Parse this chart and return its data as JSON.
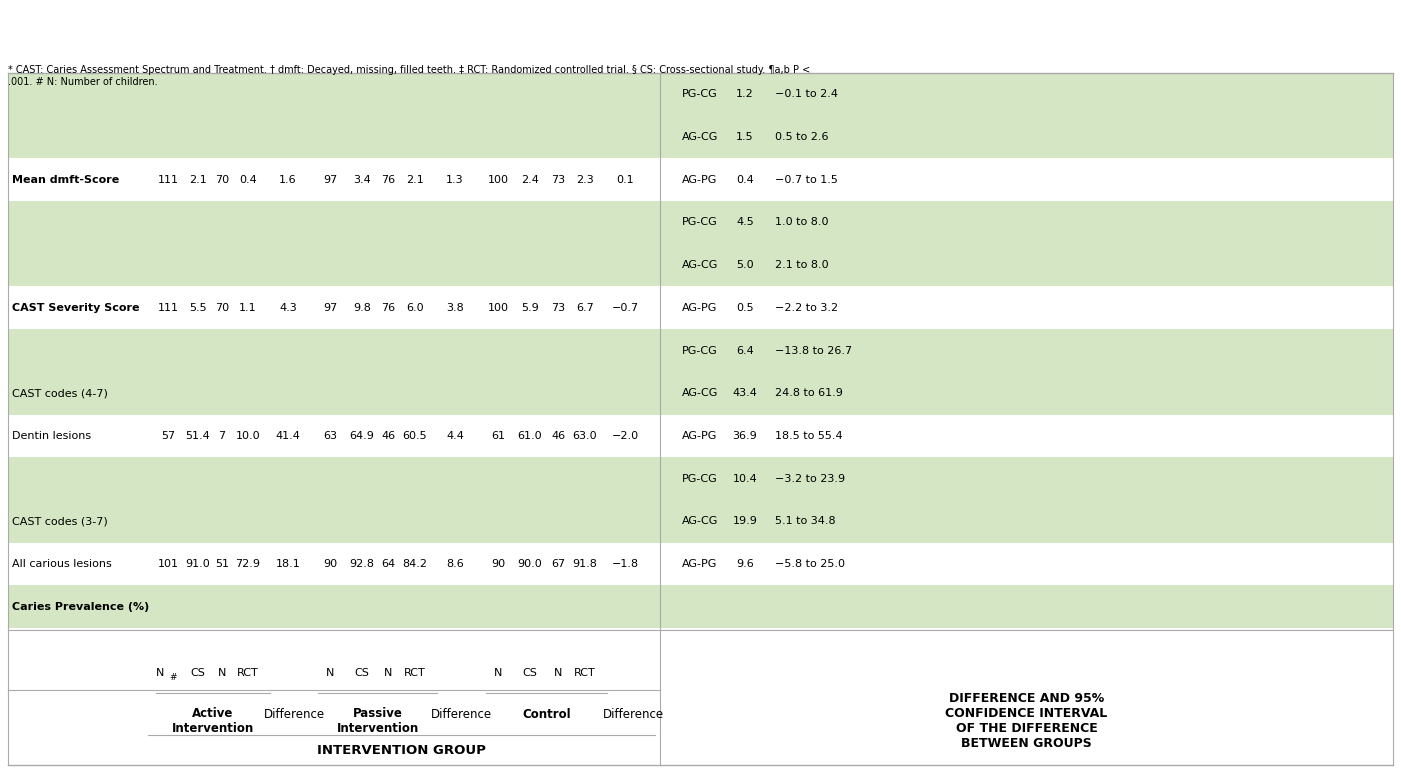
{
  "bg_color": "#ffffff",
  "green_color": "#d4e6c3",
  "border_color": "#aaaaaa",
  "figsize": [
    14.01,
    7.73
  ],
  "dpi": 100,
  "footnote": "* CAST: Caries Assessment Spectrum and Treatment. † dmft: Decayed, missing, filled teeth. ‡ RCT: Randomized controlled trial. § CS: Cross-sectional study. ¶a,b P <\n.001. # N: Number of children.",
  "col_header_1": "INTERVENTION GROUP",
  "col_header_last": "DIFFERENCE AND 95%\nCONFIDENCE INTERVAL\nOF THE DIFFERENCE\nBETWEEN GROUPS",
  "rows": [
    {
      "label": "Caries Prevalence (%)",
      "bold": true,
      "bg": "green",
      "data": [
        "",
        "",
        "",
        "",
        "",
        "",
        "",
        "",
        "",
        "",
        "",
        "",
        "",
        "",
        ""
      ],
      "diff_groups": []
    },
    {
      "label": "All carious lesions",
      "bold": false,
      "bg": "white",
      "data": [
        "101",
        "91.0",
        "51",
        "72.9",
        "18.1",
        "90",
        "92.8",
        "64",
        "84.2",
        "8.6",
        "90",
        "90.0",
        "67",
        "91.8",
        "−1.8"
      ],
      "diff_groups": [
        [
          "AG-PG",
          "9.6",
          "−5.8 to 25.0"
        ]
      ]
    },
    {
      "label": "CAST codes (3-7)",
      "bold": false,
      "bg": "green",
      "data": [
        "",
        "",
        "",
        "",
        "",
        "",
        "",
        "",
        "",
        "",
        "",
        "",
        "",
        "",
        ""
      ],
      "diff_groups": [
        [
          "AG-CG",
          "19.9",
          "5.1 to 34.8"
        ],
        [
          "PG-CG",
          "10.4",
          "−3.2 to 23.9"
        ]
      ]
    },
    {
      "label": "Dentin lesions",
      "bold": false,
      "bg": "white",
      "data": [
        "57",
        "51.4",
        "7",
        "10.0",
        "41.4",
        "63",
        "64.9",
        "46",
        "60.5",
        "4.4",
        "61",
        "61.0",
        "46",
        "63.0",
        "−2.0"
      ],
      "diff_groups": [
        [
          "AG-PG",
          "36.9",
          "18.5 to 55.4"
        ]
      ]
    },
    {
      "label": "CAST codes (4-7)",
      "bold": false,
      "bg": "green",
      "data": [
        "",
        "",
        "",
        "",
        "",
        "",
        "",
        "",
        "",
        "",
        "",
        "",
        "",
        "",
        ""
      ],
      "diff_groups": [
        [
          "AG-CG",
          "43.4",
          "24.8 to 61.9"
        ],
        [
          "PG-CG",
          "6.4",
          "−13.8 to 26.7"
        ]
      ]
    },
    {
      "label": "CAST Severity Score",
      "bold": true,
      "bg": "white",
      "data": [
        "111",
        "5.5",
        "70",
        "1.1",
        "4.3",
        "97",
        "9.8",
        "76",
        "6.0",
        "3.8",
        "100",
        "5.9",
        "73",
        "6.7",
        "−0.7"
      ],
      "diff_groups": [
        [
          "AG-PG",
          "0.5",
          "−2.2 to 3.2"
        ]
      ]
    },
    {
      "label": "",
      "bold": false,
      "bg": "green",
      "data": [
        "",
        "",
        "",
        "",
        "",
        "",
        "",
        "",
        "",
        "",
        "",
        "",
        "",
        "",
        ""
      ],
      "diff_groups": [
        [
          "AG-CG",
          "5.0",
          "2.1 to 8.0"
        ],
        [
          "PG-CG",
          "4.5",
          "1.0 to 8.0"
        ]
      ]
    },
    {
      "label": "Mean dmft-Score",
      "bold": true,
      "bg": "white",
      "data": [
        "111",
        "2.1",
        "70",
        "0.4",
        "1.6",
        "97",
        "3.4",
        "76",
        "2.1",
        "1.3",
        "100",
        "2.4",
        "73",
        "2.3",
        "0.1"
      ],
      "diff_groups": [
        [
          "AG-PG",
          "0.4",
          "−0.7 to 1.5"
        ]
      ]
    },
    {
      "label": "",
      "bold": false,
      "bg": "green",
      "data": [
        "",
        "",
        "",
        "",
        "",
        "",
        "",
        "",
        "",
        "",
        "",
        "",
        "",
        "",
        ""
      ],
      "diff_groups": [
        [
          "AG-CG",
          "1.5",
          "0.5 to 2.6"
        ],
        [
          "PG-CG",
          "1.2",
          "−0.1 to 2.4"
        ]
      ]
    }
  ]
}
